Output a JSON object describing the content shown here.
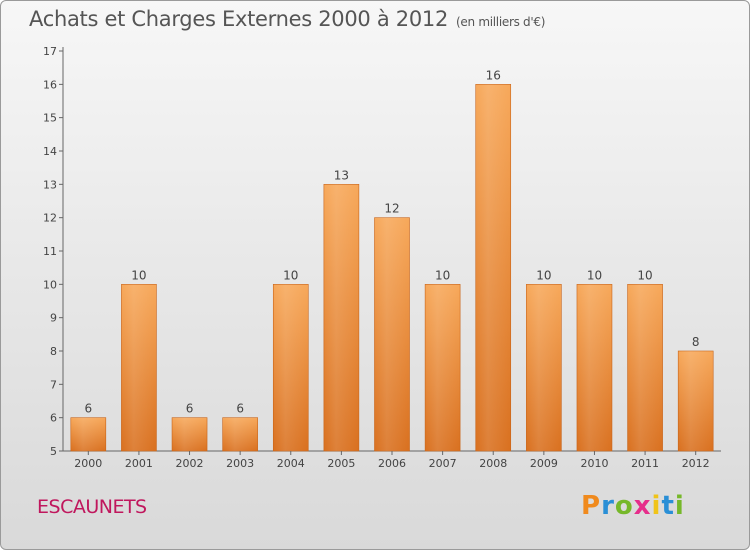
{
  "title": "Achats et Charges Externes 2000 à 2012",
  "unit": "(en milliers d'€)",
  "commune": "ESCAUNETS",
  "logo": "Proxiti",
  "colors": {
    "bar_top": "#f7a85a",
    "bar_bottom": "#d9701f",
    "title": "#555555",
    "commune": "#c0175d"
  },
  "chart_data": {
    "type": "bar",
    "categories": [
      "2000",
      "2001",
      "2002",
      "2003",
      "2004",
      "2005",
      "2006",
      "2007",
      "2008",
      "2009",
      "2010",
      "2011",
      "2012"
    ],
    "values": [
      6,
      10,
      6,
      6,
      10,
      13,
      12,
      10,
      16,
      10,
      10,
      10,
      8
    ],
    "ylim": [
      5,
      17
    ],
    "yticks": [
      5,
      6,
      7,
      8,
      9,
      10,
      11,
      12,
      13,
      14,
      15,
      16,
      17
    ],
    "grid": false,
    "data_labels": true
  }
}
